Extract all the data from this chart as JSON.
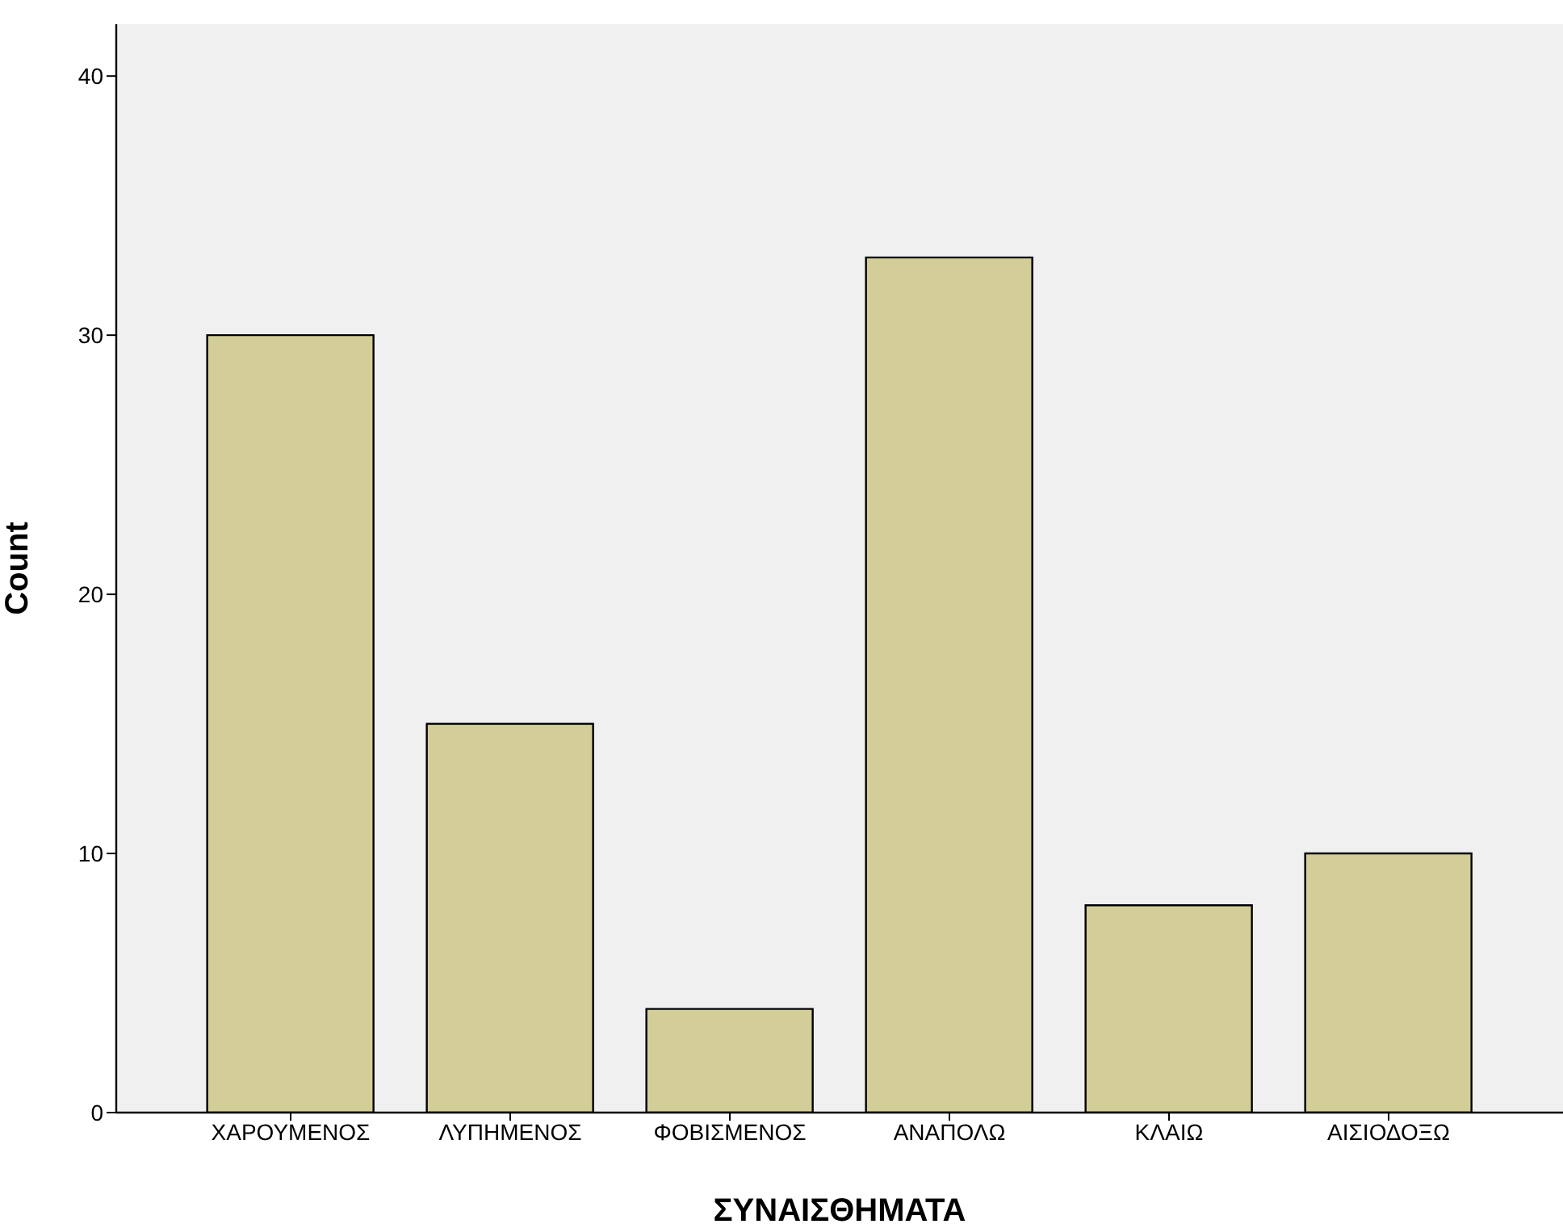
{
  "chart_data": {
    "type": "bar",
    "xlabel": "ΣΥΝΑΙΣΘΗΜΑΤΑ",
    "ylabel": "Count",
    "categories": [
      "ΧΑΡΟΥΜΕΝΟΣ",
      "ΛΥΠΗΜΕΝΟΣ",
      "ΦΟΒΙΣΜΕΝΟΣ",
      "ΑΝΑΠΟΛΩ",
      "ΚΛΑΙΩ",
      "ΑΙΣΙΟΔΟΞΩ"
    ],
    "values": [
      30,
      15,
      4,
      33,
      8,
      10
    ],
    "color": "#d3ce97",
    "ylim": [
      0,
      42
    ],
    "yticks": [
      0,
      10,
      20,
      30,
      40
    ],
    "grid": false,
    "legend": false
  }
}
